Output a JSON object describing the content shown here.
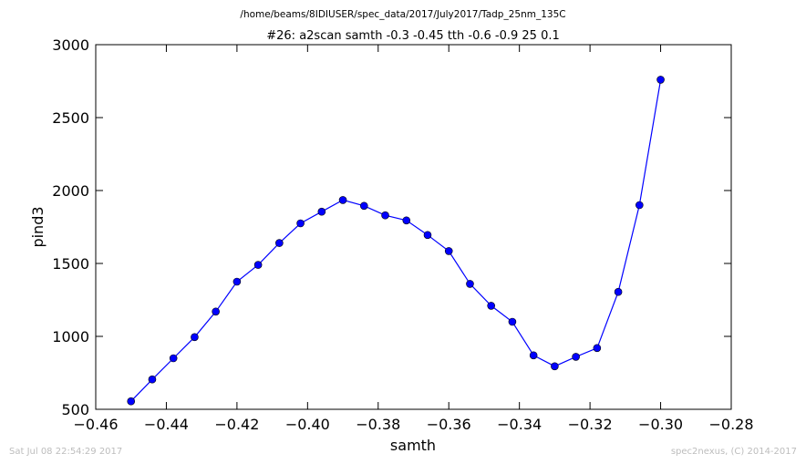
{
  "header": {
    "file_path": "/home/beams/8IDIUSER/spec_data/2017/July2017/Tadp_25nm_135C"
  },
  "footer": {
    "timestamp": "Sat Jul 08 22:54:29 2017",
    "credit": "spec2nexus, (C) 2014-2017"
  },
  "colors": {
    "series": "#0000ff",
    "axes": "#000000",
    "footer": "#bdbdbd"
  },
  "chart_data": {
    "type": "line",
    "title": "#26: a2scan  samth -0.3 -0.45  tth -0.6 -0.9  25 0.1",
    "xlabel": "samth",
    "ylabel": "pind3",
    "xlim": [
      -0.46,
      -0.28
    ],
    "ylim": [
      500,
      3000
    ],
    "xticks": [
      -0.46,
      -0.44,
      -0.42,
      -0.4,
      -0.38,
      -0.36,
      -0.34,
      -0.32,
      -0.3,
      -0.28
    ],
    "xtick_labels": [
      "−0.46",
      "−0.44",
      "−0.42",
      "−0.40",
      "−0.38",
      "−0.36",
      "−0.34",
      "−0.32",
      "−0.30",
      "−0.28"
    ],
    "yticks": [
      500,
      1000,
      1500,
      2000,
      2500,
      3000
    ],
    "ytick_labels": [
      "500",
      "1000",
      "1500",
      "2000",
      "2500",
      "3000"
    ],
    "grid": false,
    "marker": "circle",
    "x": [
      -0.45,
      -0.444,
      -0.438,
      -0.432,
      -0.426,
      -0.42,
      -0.414,
      -0.408,
      -0.402,
      -0.396,
      -0.39,
      -0.384,
      -0.378,
      -0.372,
      -0.366,
      -0.36,
      -0.354,
      -0.348,
      -0.342,
      -0.336,
      -0.33,
      -0.324,
      -0.318,
      -0.312,
      -0.306,
      -0.3
    ],
    "y": [
      555,
      705,
      850,
      995,
      1170,
      1375,
      1490,
      1640,
      1775,
      1855,
      1935,
      1895,
      1830,
      1795,
      1695,
      1585,
      1360,
      1210,
      1100,
      870,
      795,
      860,
      920,
      1305,
      1900,
      2760
    ]
  }
}
